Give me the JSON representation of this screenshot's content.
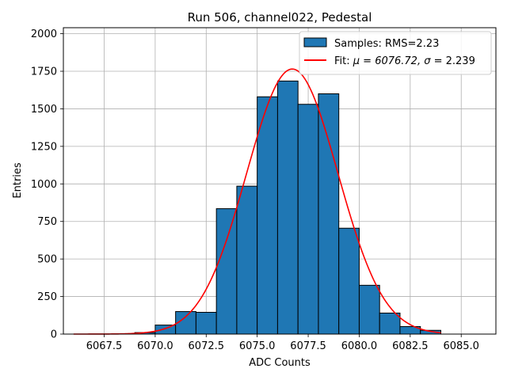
{
  "chart_data": {
    "type": "bar",
    "title": "Run 506, channel022, Pedestal",
    "xlabel": "ADC Counts",
    "ylabel": "Entries",
    "xlim": [
      6065.5,
      6086.7
    ],
    "ylim": [
      0,
      2040
    ],
    "grid": true,
    "legend_position": "top-right",
    "x_ticks": [
      6067.5,
      6070.0,
      6072.5,
      6075.0,
      6077.5,
      6080.0,
      6082.5,
      6085.0
    ],
    "x_tick_labels": [
      "6067.5",
      "6070.0",
      "6072.5",
      "6075.0",
      "6077.5",
      "6080.0",
      "6082.5",
      "6085.0"
    ],
    "y_ticks": [
      0,
      250,
      500,
      750,
      1000,
      1250,
      1500,
      1750,
      2000
    ],
    "y_tick_labels": [
      "0",
      "250",
      "500",
      "750",
      "1000",
      "1250",
      "1500",
      "1750",
      "2000"
    ],
    "histogram": {
      "name": "Samples: RMS=2.23",
      "color": "#1f77b4",
      "edge_color": "#000000",
      "bin_edges": [
        6069,
        6070,
        6071,
        6072,
        6073,
        6074,
        6075,
        6076,
        6077,
        6078,
        6079,
        6080,
        6081,
        6082,
        6083,
        6084
      ],
      "counts": [
        10,
        60,
        150,
        145,
        835,
        985,
        1580,
        1685,
        1530,
        1600,
        705,
        325,
        140,
        50,
        25
      ]
    },
    "fit": {
      "name": "Fit: μ = 6076.72, σ = 2.239",
      "legend_prefix": "Fit: ",
      "legend_suffix": " = 2.239",
      "legend_mu_part": "μ = 6076.72, ",
      "color": "#ff0000",
      "mu": 6076.72,
      "sigma": 2.239,
      "amplitude": 1765,
      "x_range": [
        6066,
        6084
      ]
    }
  }
}
